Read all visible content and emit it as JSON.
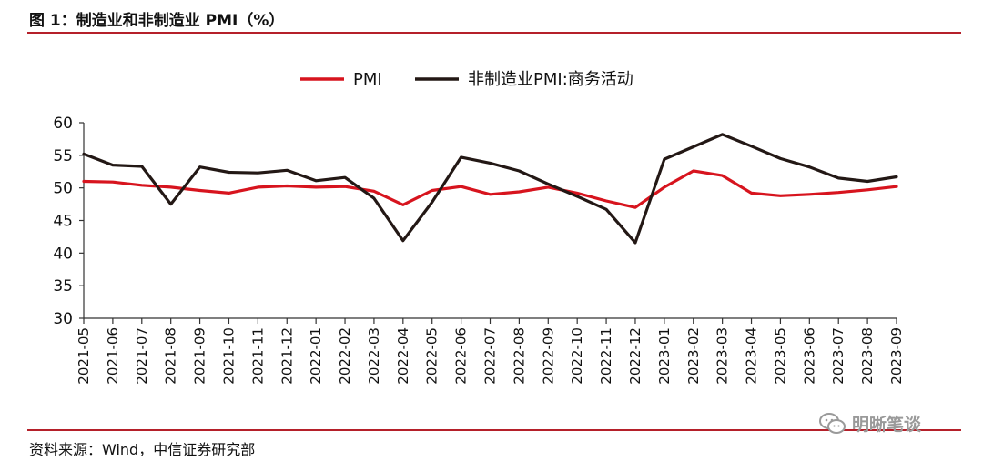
{
  "figure": {
    "title": "图 1：制造业和非制造业 PMI（%）",
    "source": "资料来源：Wind，中信证券研究部",
    "watermark": "明晰笔谈",
    "watermark_icon": "wechat-icon"
  },
  "chart_data": {
    "type": "line",
    "title": "",
    "xlabel": "",
    "ylabel": "",
    "ylim": [
      30,
      60
    ],
    "yticks": [
      30,
      35,
      40,
      45,
      50,
      55,
      60
    ],
    "grid": false,
    "legend_position": "top-center",
    "categories": [
      "2021-05",
      "2021-06",
      "2021-07",
      "2021-08",
      "2021-09",
      "2021-10",
      "2021-11",
      "2021-12",
      "2022-01",
      "2022-02",
      "2022-03",
      "2022-04",
      "2022-05",
      "2022-06",
      "2022-07",
      "2022-08",
      "2022-09",
      "2022-10",
      "2022-11",
      "2022-12",
      "2023-01",
      "2023-02",
      "2023-03",
      "2023-04",
      "2023-05",
      "2023-06",
      "2023-07",
      "2023-08",
      "2023-09"
    ],
    "series": [
      {
        "name": "PMI",
        "color": "#d7141e",
        "values": [
          51.0,
          50.9,
          50.4,
          50.1,
          49.6,
          49.2,
          50.1,
          50.3,
          50.1,
          50.2,
          49.5,
          47.4,
          49.6,
          50.2,
          49.0,
          49.4,
          50.1,
          49.2,
          48.0,
          47.0,
          50.1,
          52.6,
          51.9,
          49.2,
          48.8,
          49.0,
          49.3,
          49.7,
          50.2
        ]
      },
      {
        "name": "非制造业PMI:商务活动",
        "color": "#231815",
        "values": [
          55.2,
          53.5,
          53.3,
          47.5,
          53.2,
          52.4,
          52.3,
          52.7,
          51.1,
          51.6,
          48.4,
          41.9,
          47.8,
          54.7,
          53.8,
          52.6,
          50.6,
          48.7,
          46.7,
          41.6,
          54.4,
          56.3,
          58.2,
          56.4,
          54.5,
          53.2,
          51.5,
          51.0,
          51.7
        ]
      }
    ]
  }
}
